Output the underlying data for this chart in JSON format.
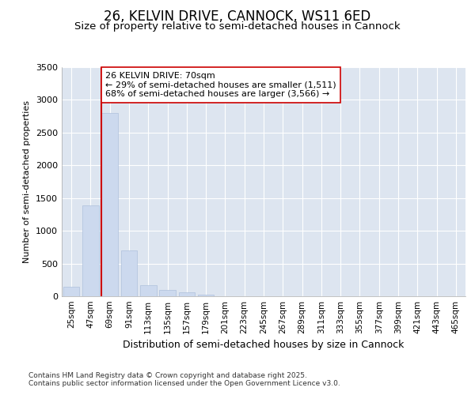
{
  "title": "26, KELVIN DRIVE, CANNOCK, WS11 6ED",
  "subtitle": "Size of property relative to semi-detached houses in Cannock",
  "xlabel": "Distribution of semi-detached houses by size in Cannock",
  "ylabel": "Number of semi-detached properties",
  "categories": [
    "25sqm",
    "47sqm",
    "69sqm",
    "91sqm",
    "113sqm",
    "135sqm",
    "157sqm",
    "179sqm",
    "201sqm",
    "223sqm",
    "245sqm",
    "267sqm",
    "289sqm",
    "311sqm",
    "333sqm",
    "355sqm",
    "377sqm",
    "399sqm",
    "421sqm",
    "443sqm",
    "465sqm"
  ],
  "values": [
    150,
    1390,
    2800,
    700,
    175,
    100,
    60,
    30,
    0,
    0,
    0,
    0,
    0,
    0,
    0,
    0,
    0,
    0,
    0,
    0,
    0
  ],
  "bar_color": "#ccd9ee",
  "bar_edge_color": "#aec0dc",
  "ref_line_index": 2,
  "ref_line_color": "#cc0000",
  "annotation_text": "26 KELVIN DRIVE: 70sqm\n← 29% of semi-detached houses are smaller (1,511)\n68% of semi-detached houses are larger (3,566) →",
  "annotation_box_color": "#ffffff",
  "annotation_box_edge": "#cc0000",
  "ylim": [
    0,
    3500
  ],
  "yticks": [
    0,
    500,
    1000,
    1500,
    2000,
    2500,
    3000,
    3500
  ],
  "plot_background": "#dde5f0",
  "grid_color": "#ffffff",
  "footer": "Contains HM Land Registry data © Crown copyright and database right 2025.\nContains public sector information licensed under the Open Government Licence v3.0.",
  "title_fontsize": 12,
  "subtitle_fontsize": 9.5,
  "tick_fontsize": 7.5,
  "ylabel_fontsize": 8,
  "xlabel_fontsize": 9,
  "annotation_fontsize": 8
}
